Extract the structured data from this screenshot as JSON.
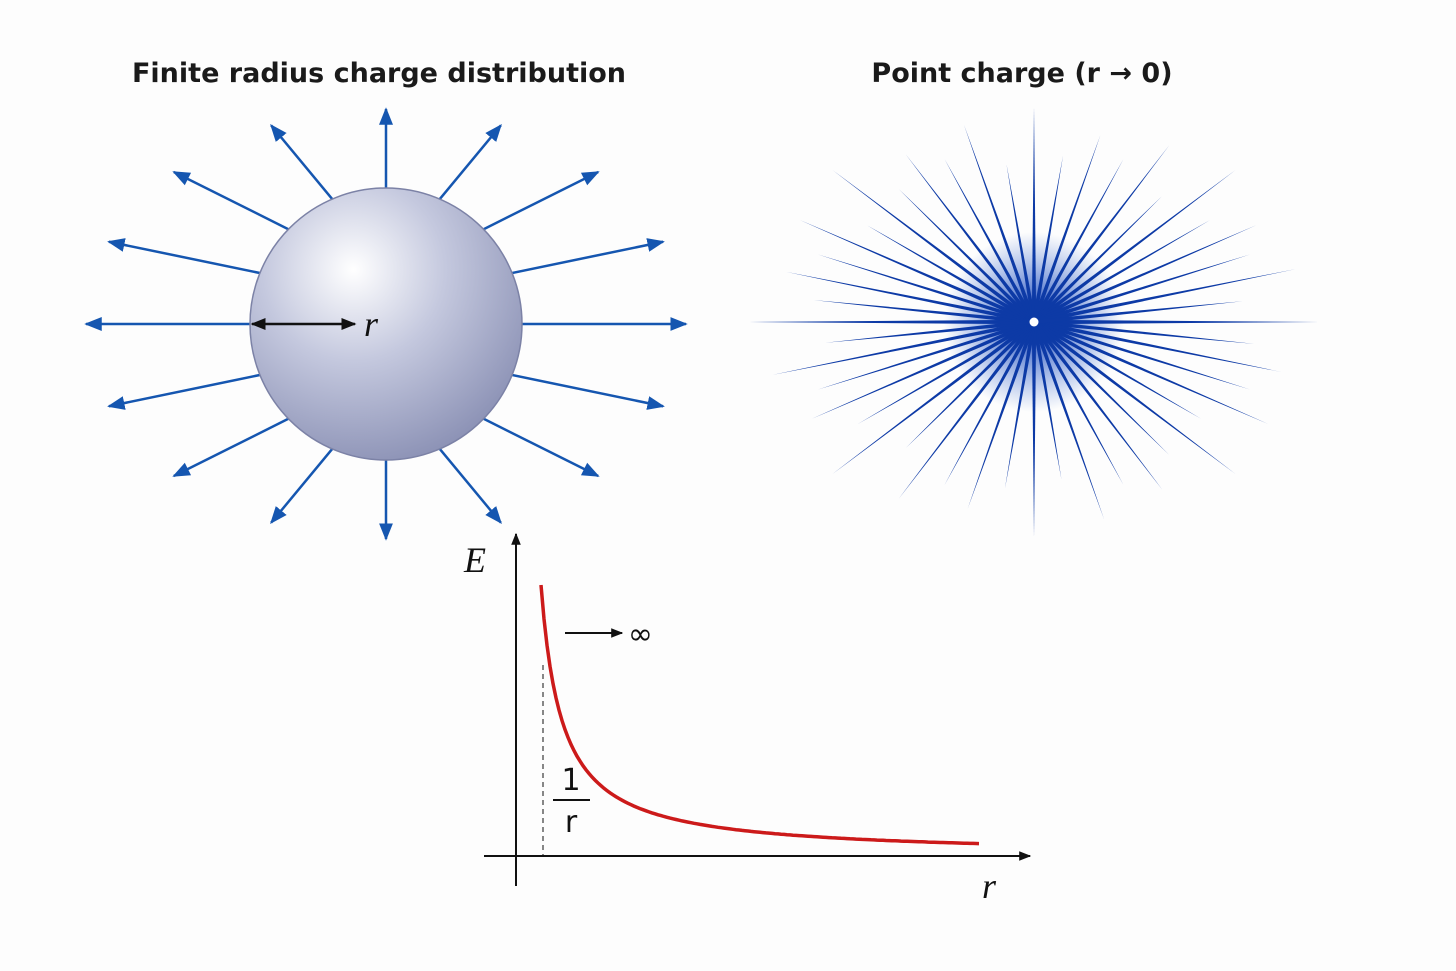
{
  "panels": {
    "finite": {
      "title": "Finite radius charge distribution",
      "radius_label": "r"
    },
    "point": {
      "title": "Point charge (r → 0)"
    }
  },
  "graph": {
    "y_axis_label": "E",
    "x_axis_label": "r",
    "limit_label": "∞",
    "fraction": {
      "numerator": "1",
      "denominator": "r"
    }
  }
}
